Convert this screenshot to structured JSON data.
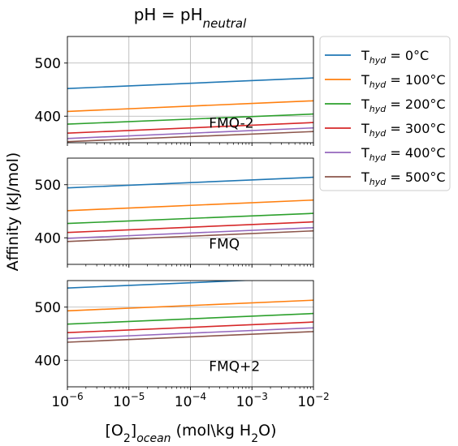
{
  "chart_data": {
    "type": "line",
    "title": "pH = pH",
    "title_sub": "neutral",
    "xlabel": {
      "pre": "[O",
      "sub1": "2",
      "mid": "]",
      "sub2": "ocean",
      "post": " (mol\\kg H",
      "sub3": "2",
      "post2": "O)"
    },
    "ylabel": "Affinity (kJ/mol)",
    "x_scale": "log",
    "xlim": [
      1e-06,
      0.01
    ],
    "ylim": [
      350,
      550
    ],
    "x_tick_labels": [
      {
        "x": 1e-06,
        "base": "10",
        "exp": "−6"
      },
      {
        "x": 1e-05,
        "base": "10",
        "exp": "−5"
      },
      {
        "x": 0.0001,
        "base": "10",
        "exp": "−4"
      },
      {
        "x": 0.001,
        "base": "10",
        "exp": "−3"
      },
      {
        "x": 0.01,
        "base": "10",
        "exp": "−2"
      }
    ],
    "y_ticks": [
      400,
      500
    ],
    "grid": true,
    "legend_placement": "right of top panel",
    "series_styles": [
      {
        "name_pre": "T",
        "name_sub": "hyd",
        "name_post": " = 0°C",
        "color": "#1f77b4"
      },
      {
        "name_pre": "T",
        "name_sub": "hyd",
        "name_post": " = 100°C",
        "color": "#ff7f0e"
      },
      {
        "name_pre": "T",
        "name_sub": "hyd",
        "name_post": " = 200°C",
        "color": "#2ca02c"
      },
      {
        "name_pre": "T",
        "name_sub": "hyd",
        "name_post": " = 300°C",
        "color": "#d62728"
      },
      {
        "name_pre": "T",
        "name_sub": "hyd",
        "name_post": " = 400°C",
        "color": "#9467bd"
      },
      {
        "name_pre": "T",
        "name_sub": "hyd",
        "name_post": " = 500°C",
        "color": "#8c564b"
      }
    ],
    "panels": [
      {
        "label": "FMQ-2",
        "series": [
          {
            "x": [
              1e-06,
              0.01
            ],
            "y": [
              452,
              472
            ]
          },
          {
            "x": [
              1e-06,
              0.01
            ],
            "y": [
              409,
              429
            ]
          },
          {
            "x": [
              1e-06,
              0.01
            ],
            "y": [
              385,
              404
            ]
          },
          {
            "x": [
              1e-06,
              0.01
            ],
            "y": [
              368,
              388
            ]
          },
          {
            "x": [
              1e-06,
              0.01
            ],
            "y": [
              358,
              378
            ]
          },
          {
            "x": [
              1e-06,
              0.01
            ],
            "y": [
              352,
              371
            ]
          }
        ]
      },
      {
        "label": "FMQ",
        "series": [
          {
            "x": [
              1e-06,
              0.01
            ],
            "y": [
              494,
              514
            ]
          },
          {
            "x": [
              1e-06,
              0.01
            ],
            "y": [
              451,
              471
            ]
          },
          {
            "x": [
              1e-06,
              0.01
            ],
            "y": [
              427,
              446
            ]
          },
          {
            "x": [
              1e-06,
              0.01
            ],
            "y": [
              410,
              430
            ]
          },
          {
            "x": [
              1e-06,
              0.01
            ],
            "y": [
              399,
              419
            ]
          },
          {
            "x": [
              1e-06,
              0.01
            ],
            "y": [
              393,
              413
            ]
          }
        ]
      },
      {
        "label": "FMQ+2",
        "series": [
          {
            "x": [
              1e-06,
              0.01
            ],
            "y": [
              536,
              556
            ]
          },
          {
            "x": [
              1e-06,
              0.01
            ],
            "y": [
              493,
              513
            ]
          },
          {
            "x": [
              1e-06,
              0.01
            ],
            "y": [
              468,
              488
            ]
          },
          {
            "x": [
              1e-06,
              0.01
            ],
            "y": [
              452,
              472
            ]
          },
          {
            "x": [
              1e-06,
              0.01
            ],
            "y": [
              441,
              461
            ]
          },
          {
            "x": [
              1e-06,
              0.01
            ],
            "y": [
              434,
              454
            ]
          }
        ]
      }
    ]
  }
}
